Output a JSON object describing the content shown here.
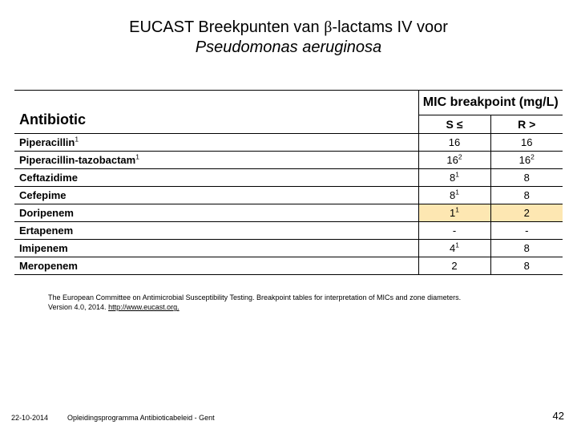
{
  "title": {
    "line1_pre": "EUCAST Breekpunten van ",
    "line1_beta": "β",
    "line1_post": "-lactams IV voor",
    "line2_italic": "Pseudomonas aeruginosa"
  },
  "table": {
    "header_antibiotic": "Antibiotic",
    "header_mic": "MIC breakpoint (mg/L)",
    "sub_s": "S ≤",
    "sub_r": "R >",
    "col_widths": {
      "s": 90,
      "r": 90
    },
    "rows": [
      {
        "name": "Piperacillin",
        "name_sup": "1",
        "s": "16",
        "s_sup": "",
        "r": "16",
        "r_sup": "",
        "hl_s": false,
        "hl_r": false
      },
      {
        "name": "Piperacillin-tazobactam",
        "name_sup": "1",
        "s": "16",
        "s_sup": "2",
        "r": "16",
        "r_sup": "2",
        "hl_s": false,
        "hl_r": false
      },
      {
        "name": "Ceftazidime",
        "name_sup": "",
        "s": "8",
        "s_sup": "1",
        "r": "8",
        "r_sup": "",
        "hl_s": false,
        "hl_r": false
      },
      {
        "name": "Cefepime",
        "name_sup": "",
        "s": "8",
        "s_sup": "1",
        "r": "8",
        "r_sup": "",
        "hl_s": false,
        "hl_r": false
      },
      {
        "name": "Doripenem",
        "name_sup": "",
        "s": "1",
        "s_sup": "1",
        "r": "2",
        "r_sup": "",
        "hl_s": true,
        "hl_r": true
      },
      {
        "name": "Ertapenem",
        "name_sup": "",
        "s": "-",
        "s_sup": "",
        "r": "-",
        "r_sup": "",
        "hl_s": false,
        "hl_r": false
      },
      {
        "name": "Imipenem",
        "name_sup": "",
        "s": "4",
        "s_sup": "1",
        "r": "8",
        "r_sup": "",
        "hl_s": false,
        "hl_r": false
      },
      {
        "name": "Meropenem",
        "name_sup": "",
        "s": "2",
        "s_sup": "",
        "r": "8",
        "r_sup": "",
        "hl_s": false,
        "hl_r": false
      }
    ]
  },
  "citation": {
    "text1": "The European Committee on Antimicrobial Susceptibility Testing. Breakpoint tables for interpretation of MICs and zone diameters.",
    "text2_pre": "Version 4.0, 2014. ",
    "text2_link": "http://www.eucast.org."
  },
  "footer": {
    "date": "22-10-2014",
    "program": "Opleidingsprogramma Antibioticabeleid - Gent",
    "page": "42"
  },
  "colors": {
    "highlight": "#fde7b2",
    "border": "#000000",
    "background": "#ffffff"
  }
}
